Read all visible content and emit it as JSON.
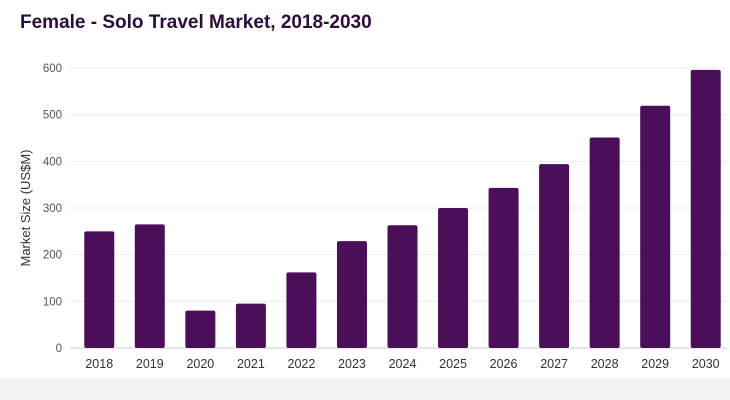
{
  "chart_data": {
    "type": "bar",
    "title": "Female - Solo Travel Market, 2018-2030",
    "xlabel": "",
    "ylabel": "Market Size (US$M)",
    "categories": [
      "2018",
      "2019",
      "2020",
      "2021",
      "2022",
      "2023",
      "2024",
      "2025",
      "2026",
      "2027",
      "2028",
      "2029",
      "2030"
    ],
    "values": [
      250,
      265,
      80,
      95,
      162,
      229,
      263,
      300,
      343,
      394,
      451,
      519,
      596
    ],
    "ylim": [
      0,
      600
    ],
    "yticks": [
      0,
      100,
      200,
      300,
      400,
      500,
      600
    ],
    "grid": true,
    "bar_color": "#4b0f5a"
  }
}
